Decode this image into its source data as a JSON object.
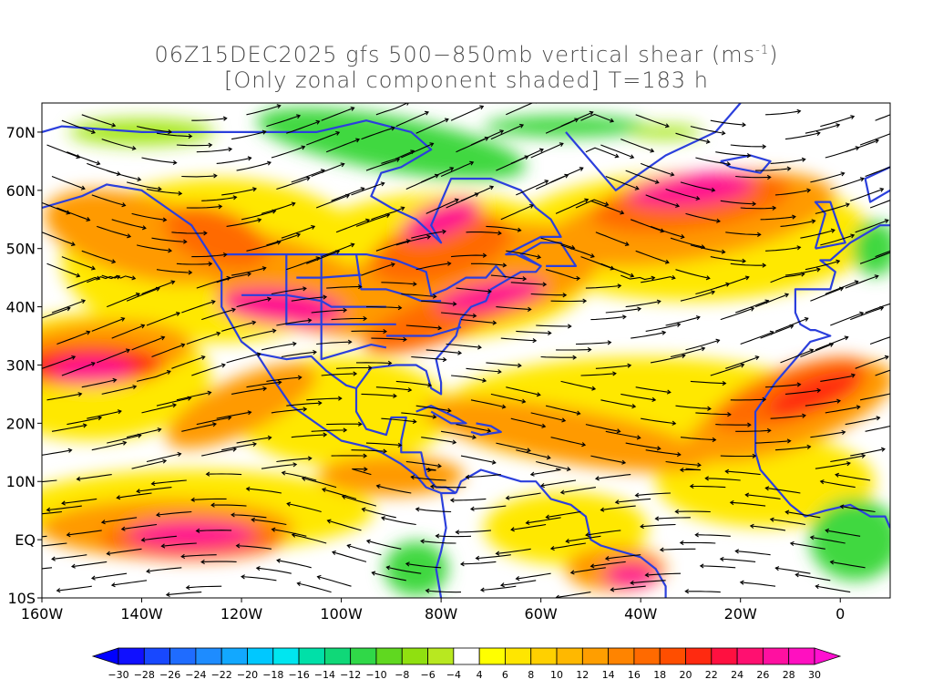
{
  "title": {
    "line1_prefix": "06Z15DEC2025 gfs 500−850mb vertical shear (ms",
    "line1_sup": "-1",
    "line1_suffix": ")",
    "line2": "[Only zonal component shaded] T=183 h"
  },
  "map": {
    "lon_range": [
      -160,
      10
    ],
    "lat_range": [
      -10,
      75
    ],
    "lat_ticks": [
      "70N",
      "60N",
      "50N",
      "40N",
      "30N",
      "20N",
      "10N",
      "EQ",
      "10S"
    ],
    "lon_ticks": [
      "160W",
      "140W",
      "120W",
      "100W",
      "80W",
      "60W",
      "40W",
      "20W",
      "0"
    ],
    "coastline_color": "#2b3fdc",
    "streamline_color": "#000000"
  },
  "colorbar": {
    "labels": [
      "-30",
      "-28",
      "-26",
      "-24",
      "-22",
      "-20",
      "-18",
      "-16",
      "-14",
      "-12",
      "-10",
      "-8",
      "-6",
      "-4",
      "4",
      "6",
      "8",
      "10",
      "12",
      "14",
      "16",
      "18",
      "20",
      "22",
      "24",
      "26",
      "28",
      "30"
    ],
    "colors": [
      "#1010ff",
      "#1848ff",
      "#1f6cff",
      "#1e8cff",
      "#12a8ff",
      "#00c8ff",
      "#00e6f0",
      "#00e0a8",
      "#10d878",
      "#30d848",
      "#60d820",
      "#90e010",
      "#b8e820",
      "#ffffff",
      "#ffff00",
      "#ffe600",
      "#ffd000",
      "#ffb800",
      "#ff9e00",
      "#ff8400",
      "#ff6a00",
      "#ff4e00",
      "#ff2a10",
      "#ff1040",
      "#ff1070",
      "#ff10a0",
      "#ff10c0"
    ],
    "left_arrow_color": "#0000ff",
    "right_arrow_color": "#ff10d0"
  }
}
